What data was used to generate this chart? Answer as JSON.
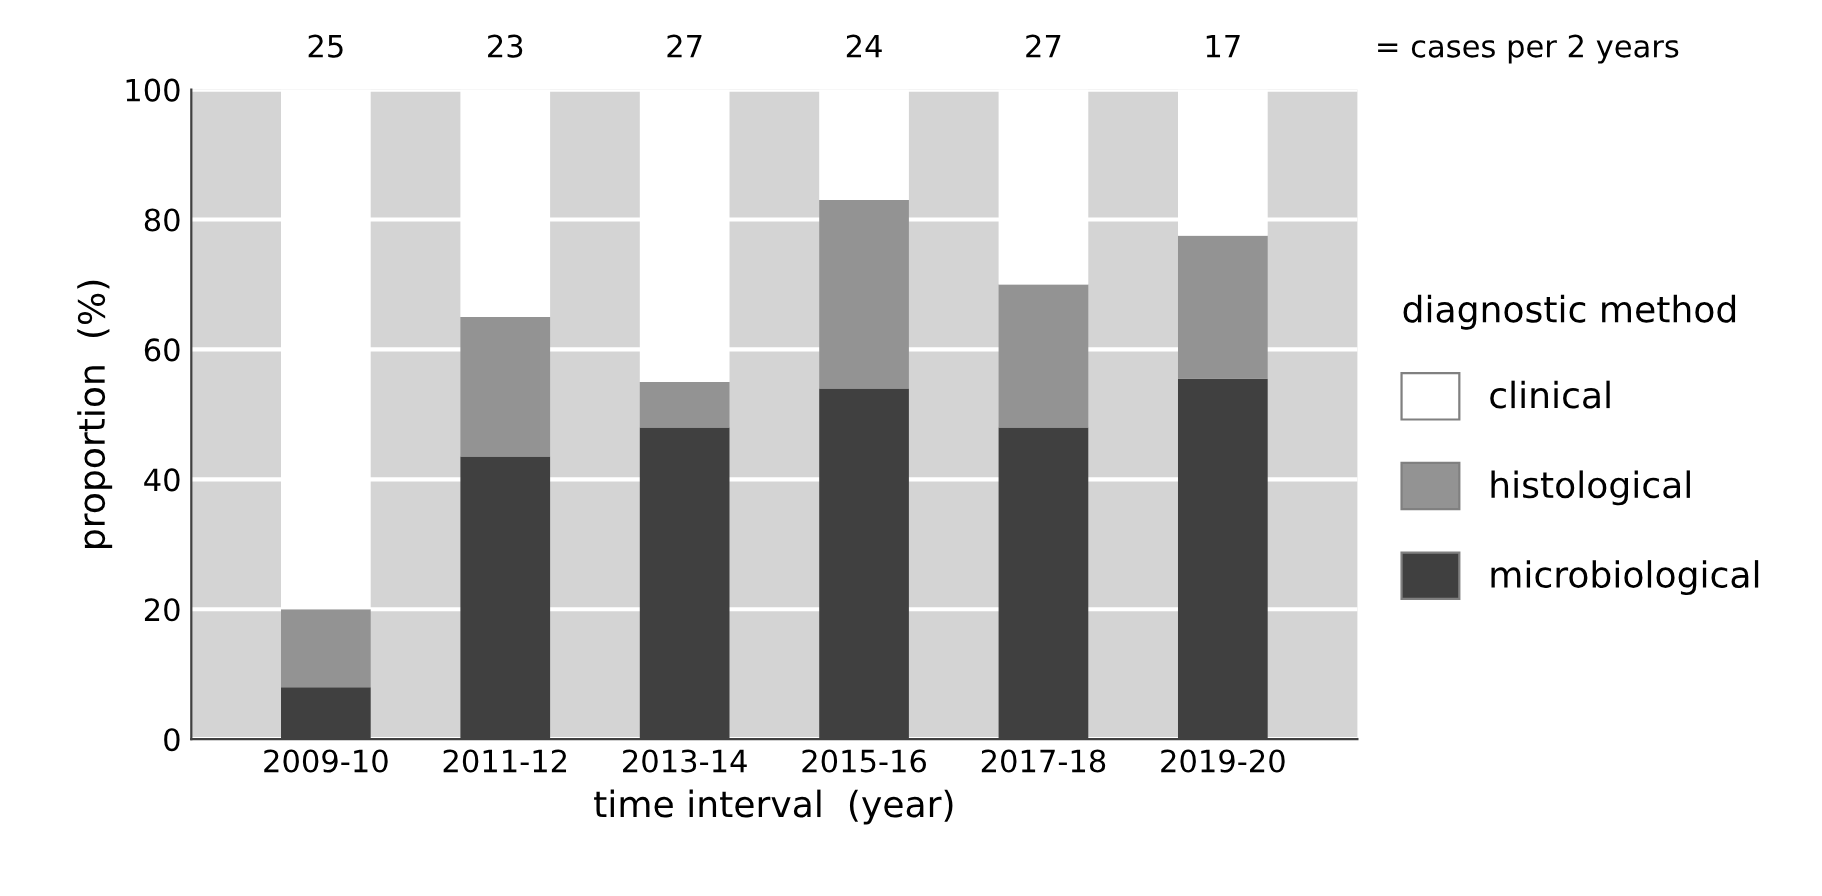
{
  "chart_data": {
    "type": "bar",
    "stacked": true,
    "xlabel": "time interval  (year)",
    "ylabel": "proportion  (%)",
    "categories": [
      "2009-10",
      "2011-12",
      "2013-14",
      "2015-16",
      "2017-18",
      "2019-20"
    ],
    "series": [
      {
        "name": "microbiological",
        "color": "#404040",
        "values": [
          8,
          43.5,
          48,
          54,
          48,
          55.5
        ]
      },
      {
        "name": "histological",
        "color": "#939393",
        "values": [
          12,
          21.5,
          7,
          29,
          22,
          22
        ]
      },
      {
        "name": "clinical",
        "color": "#ffffff",
        "values": [
          80,
          35,
          45,
          17,
          30,
          22.5
        ]
      }
    ],
    "ylim": [
      0,
      100
    ],
    "yticks": [
      0,
      20,
      40,
      60,
      80,
      100
    ],
    "grid": "y",
    "legend": "right",
    "legend_title": "diagnostic method",
    "annotations": [
      "25",
      "23",
      "27",
      "24",
      "27",
      "17",
      "= cases per 2 years"
    ]
  }
}
